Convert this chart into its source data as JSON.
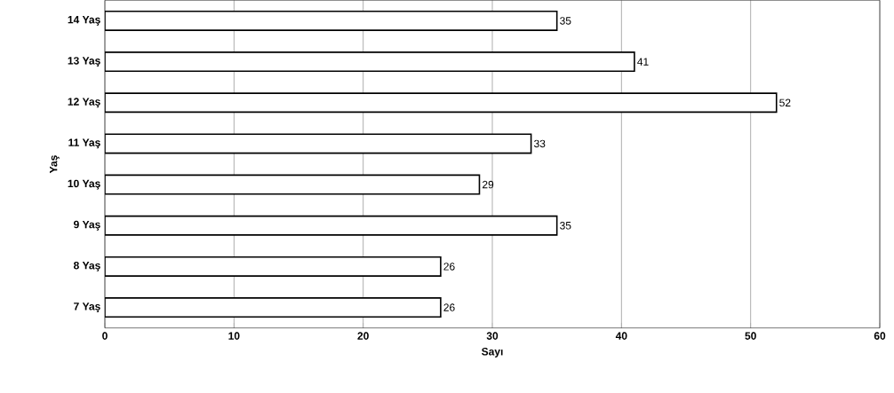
{
  "chart_data": {
    "type": "bar",
    "orientation": "horizontal",
    "xlabel": "Sayı",
    "ylabel": "Yaş",
    "categories": [
      "14 Yaş",
      "13 Yaş",
      "12 Yaş",
      "11 Yaş",
      "10 Yaş",
      "9 Yaş",
      "8 Yaş",
      "7 Yaş"
    ],
    "values": [
      35,
      41,
      52,
      33,
      29,
      35,
      26,
      26
    ],
    "color": "#ffffff",
    "xlim": [
      0,
      60
    ],
    "xticks": [
      0,
      10,
      20,
      30,
      40,
      50,
      60
    ],
    "grid": "x",
    "data_labels": true
  }
}
